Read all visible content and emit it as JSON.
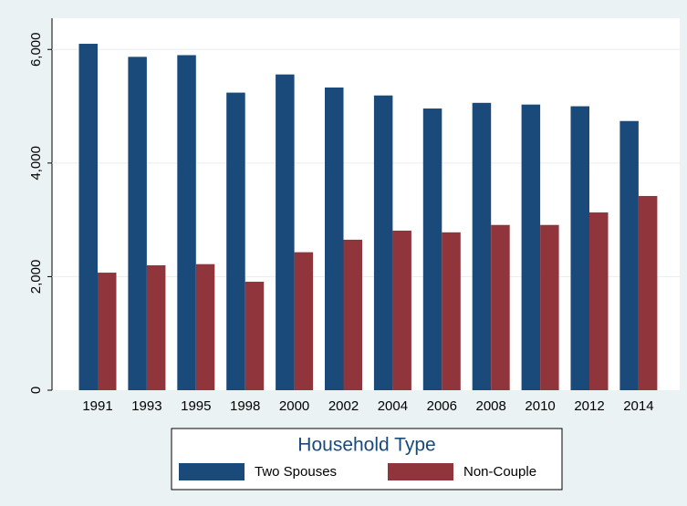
{
  "chart_data": {
    "type": "bar",
    "categories": [
      "1991",
      "1993",
      "1995",
      "1998",
      "2000",
      "2002",
      "2004",
      "2006",
      "2008",
      "2010",
      "2012",
      "2014"
    ],
    "series": [
      {
        "name": "Two Spouses",
        "color": "#1a4a7a",
        "values": [
          6100,
          5870,
          5900,
          5240,
          5560,
          5330,
          5190,
          4960,
          5060,
          5030,
          5000,
          4740
        ]
      },
      {
        "name": "Non-Couple",
        "color": "#90353b",
        "values": [
          2070,
          2200,
          2220,
          1910,
          2430,
          2650,
          2810,
          2780,
          2910,
          2910,
          3130,
          3420
        ]
      }
    ],
    "ylim": [
      0,
      6550
    ],
    "yticks": [
      0,
      {
        "value": 2000,
        "label": "2,000"
      },
      {
        "value": 4000,
        "label": "4,000"
      },
      {
        "value": 6000,
        "label": "6,000"
      }
    ],
    "grid": true,
    "legend_title": "Household Type",
    "legend_position": "bottom"
  }
}
